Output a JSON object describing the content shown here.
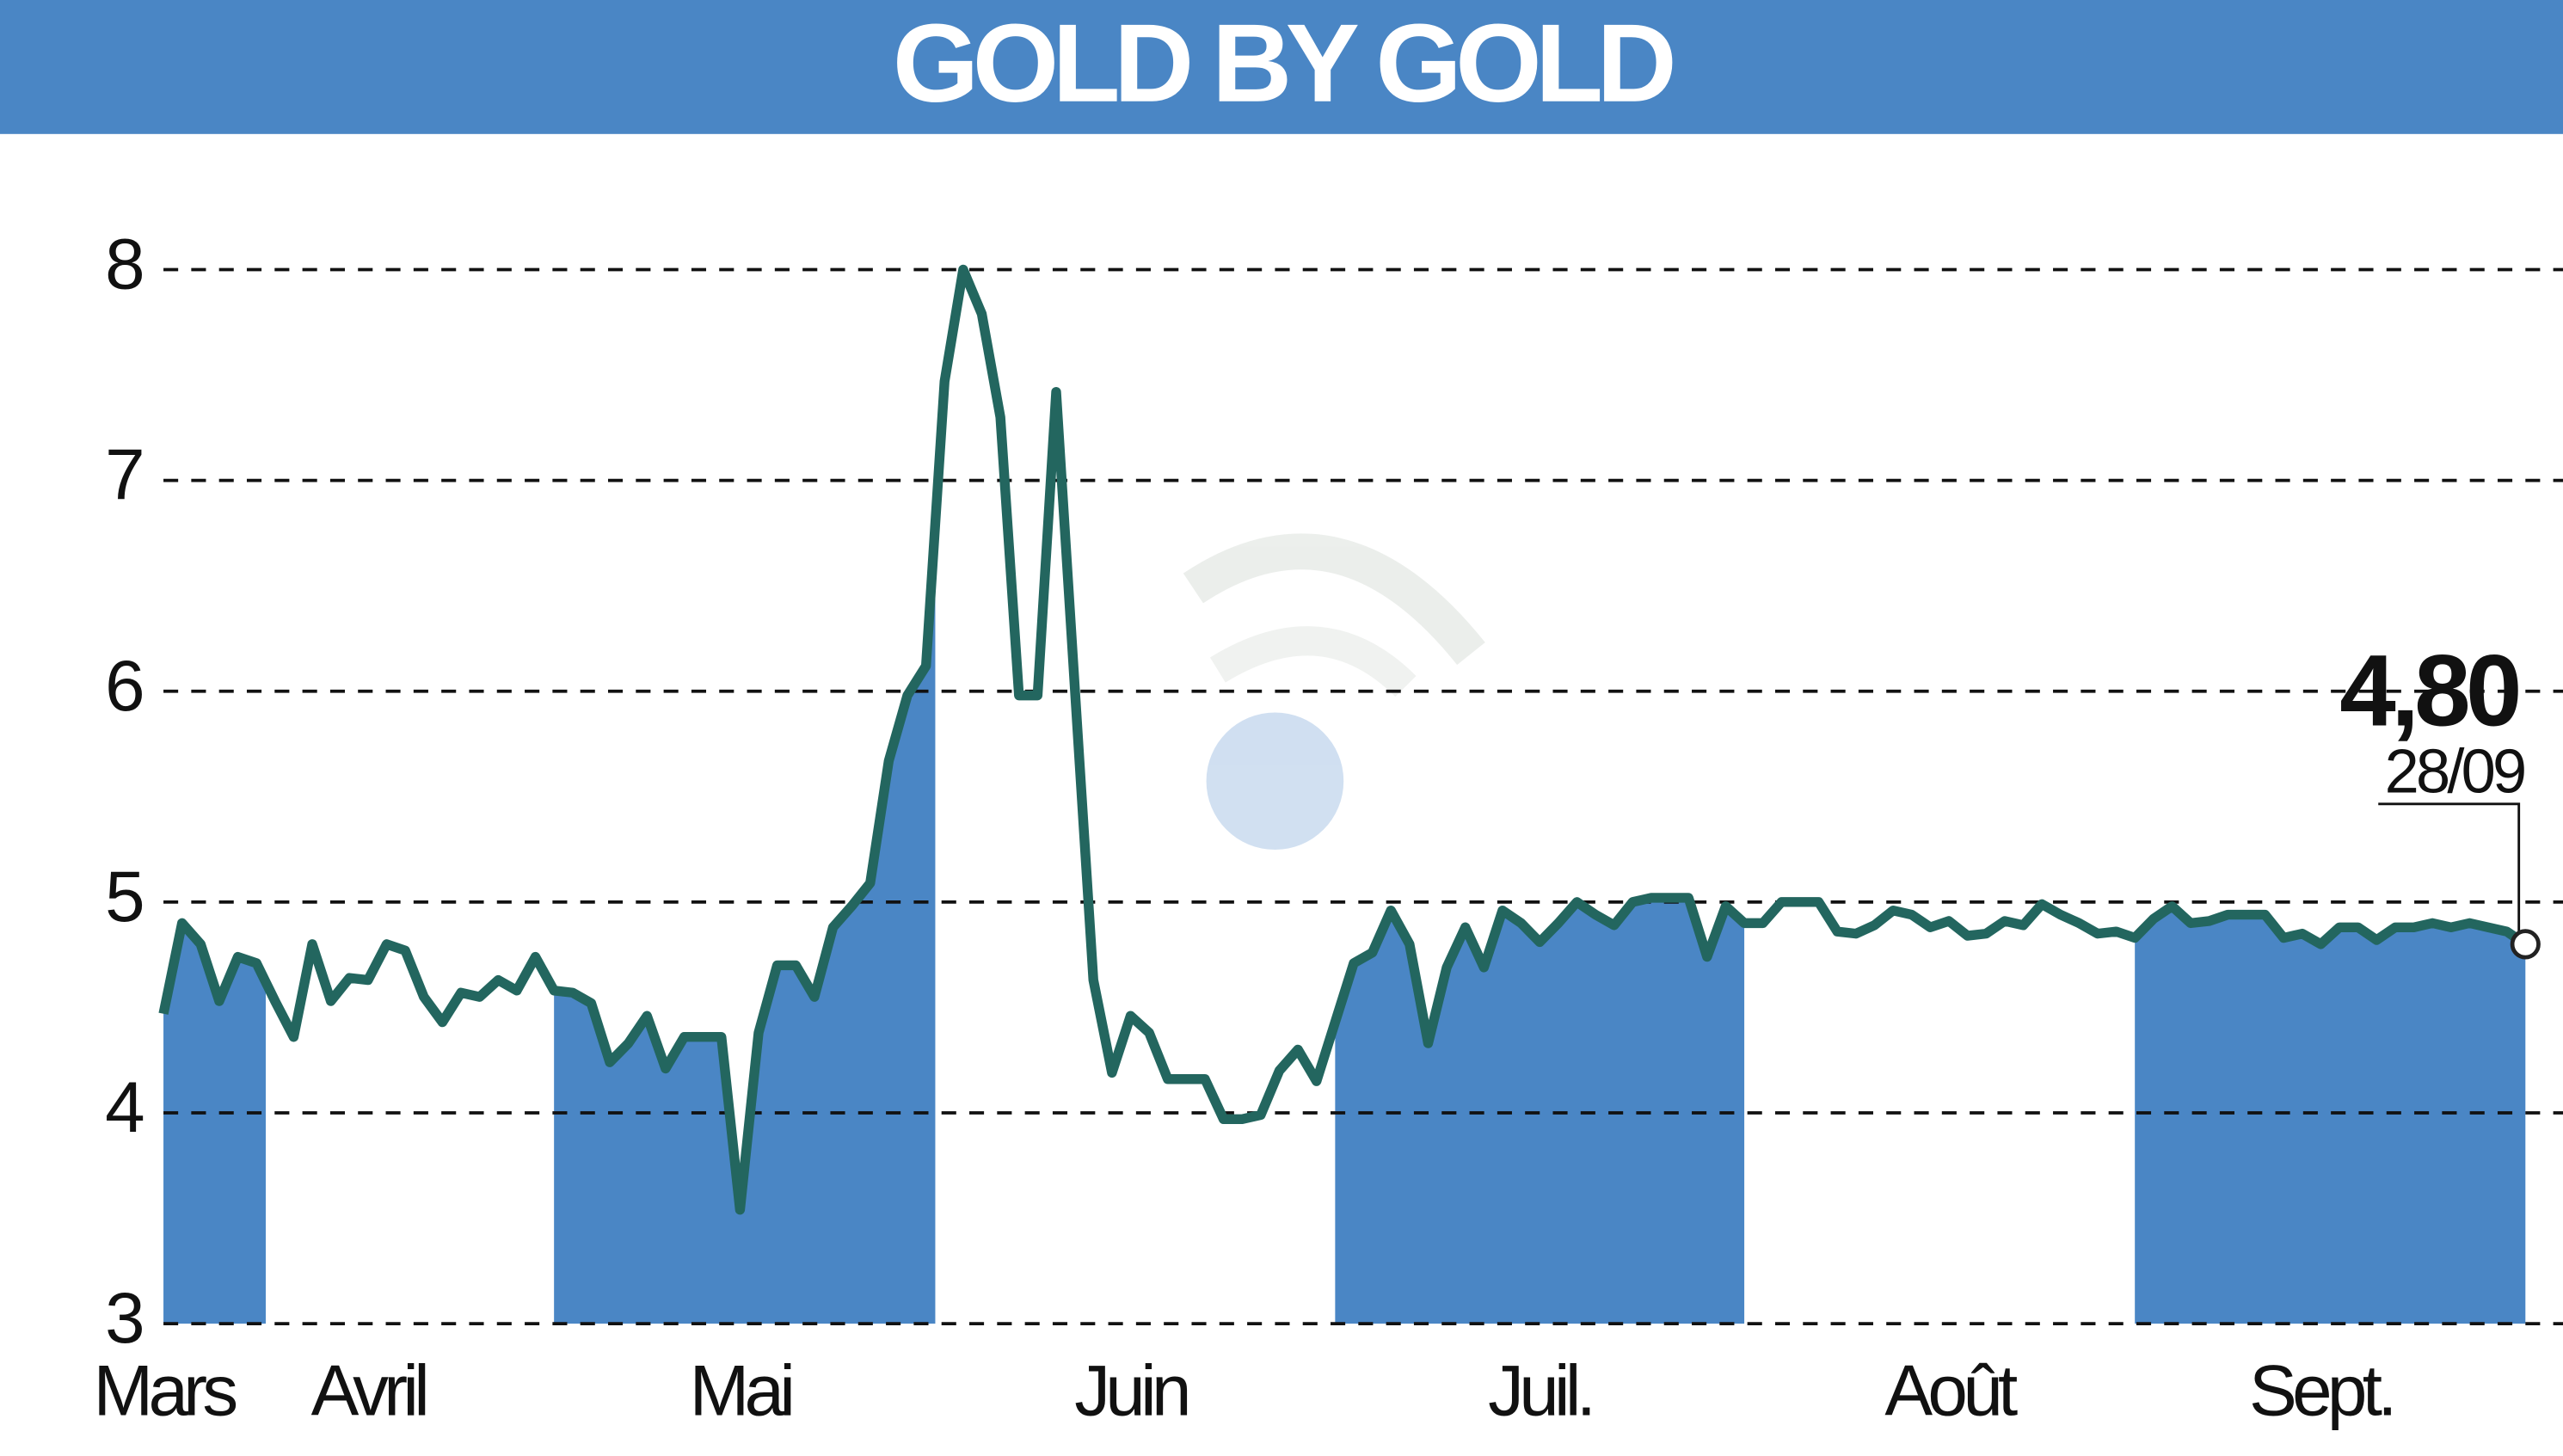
{
  "chart_data": {
    "type": "line",
    "title": "GOLD BY GOLD",
    "categories": [
      "Mars",
      null,
      null,
      null,
      null,
      null,
      null,
      null,
      null,
      null,
      null,
      "Avril",
      null,
      null,
      null,
      null,
      null,
      null,
      null,
      null,
      null,
      null,
      null,
      null,
      null,
      null,
      null,
      null,
      null,
      null,
      null,
      "Mai",
      null,
      null,
      null,
      null,
      null,
      null,
      null,
      null,
      null,
      null,
      null,
      null,
      null,
      null,
      null,
      null,
      null,
      null,
      null,
      null,
      "Juin",
      null,
      null,
      null,
      null,
      null,
      null,
      null,
      null,
      null,
      null,
      null,
      null,
      null,
      null,
      null,
      null,
      null,
      null,
      null,
      null,
      null,
      "Juil.",
      null,
      null,
      null,
      null,
      null,
      null,
      null,
      null,
      null,
      null,
      null,
      null,
      null,
      null,
      null,
      null,
      null,
      null,
      null,
      null,
      null,
      "Août",
      null,
      null,
      null,
      null,
      null,
      null,
      null,
      null,
      null,
      null,
      null,
      null,
      null,
      null,
      null,
      null,
      null,
      null,
      null,
      "Sept.",
      null,
      null,
      null,
      null,
      null,
      null,
      null,
      null,
      null,
      null,
      null
    ],
    "values": [
      4.47,
      4.9,
      4.8,
      4.53,
      4.74,
      4.71,
      4.53,
      4.36,
      4.8,
      4.53,
      4.64,
      4.63,
      4.8,
      4.77,
      4.55,
      4.43,
      4.57,
      4.55,
      4.63,
      4.58,
      4.74,
      4.58,
      4.57,
      4.52,
      4.24,
      4.33,
      4.46,
      4.21,
      4.36,
      4.36,
      4.36,
      3.54,
      4.38,
      4.7,
      4.7,
      4.55,
      4.88,
      4.98,
      5.09,
      5.67,
      5.98,
      6.12,
      7.47,
      8.0,
      7.79,
      7.3,
      5.98,
      5.98,
      7.42,
      6.02,
      4.63,
      4.19,
      4.46,
      4.38,
      4.16,
      4.16,
      4.16,
      3.97,
      3.97,
      3.99,
      4.2,
      4.3,
      4.15,
      4.43,
      4.71,
      4.76,
      4.96,
      4.8,
      4.33,
      4.69,
      4.88,
      4.69,
      4.96,
      4.9,
      4.81,
      4.9,
      5.0,
      4.94,
      4.89,
      5.0,
      5.02,
      5.02,
      5.02,
      4.74,
      4.98,
      4.9,
      4.9,
      5.0,
      5.0,
      5.0,
      4.86,
      4.85,
      4.89,
      4.96,
      4.94,
      4.88,
      4.91,
      4.84,
      4.85,
      4.91,
      4.89,
      4.99,
      4.94,
      4.9,
      4.85,
      4.86,
      4.83,
      4.92,
      4.98,
      4.9,
      4.91,
      4.94,
      4.94,
      4.94,
      4.83,
      4.85,
      4.8,
      4.88,
      4.88,
      4.82,
      4.88,
      4.88,
      4.9,
      4.88,
      4.9,
      4.88,
      4.86,
      4.8
    ],
    "last_value_label": "4,80",
    "last_date": "28/09",
    "color": "#23665f",
    "band_color": "#4a86c5",
    "ylim": [
      3,
      8
    ],
    "yticks": [
      3,
      4,
      5,
      6,
      7,
      8
    ],
    "grid": true
  }
}
